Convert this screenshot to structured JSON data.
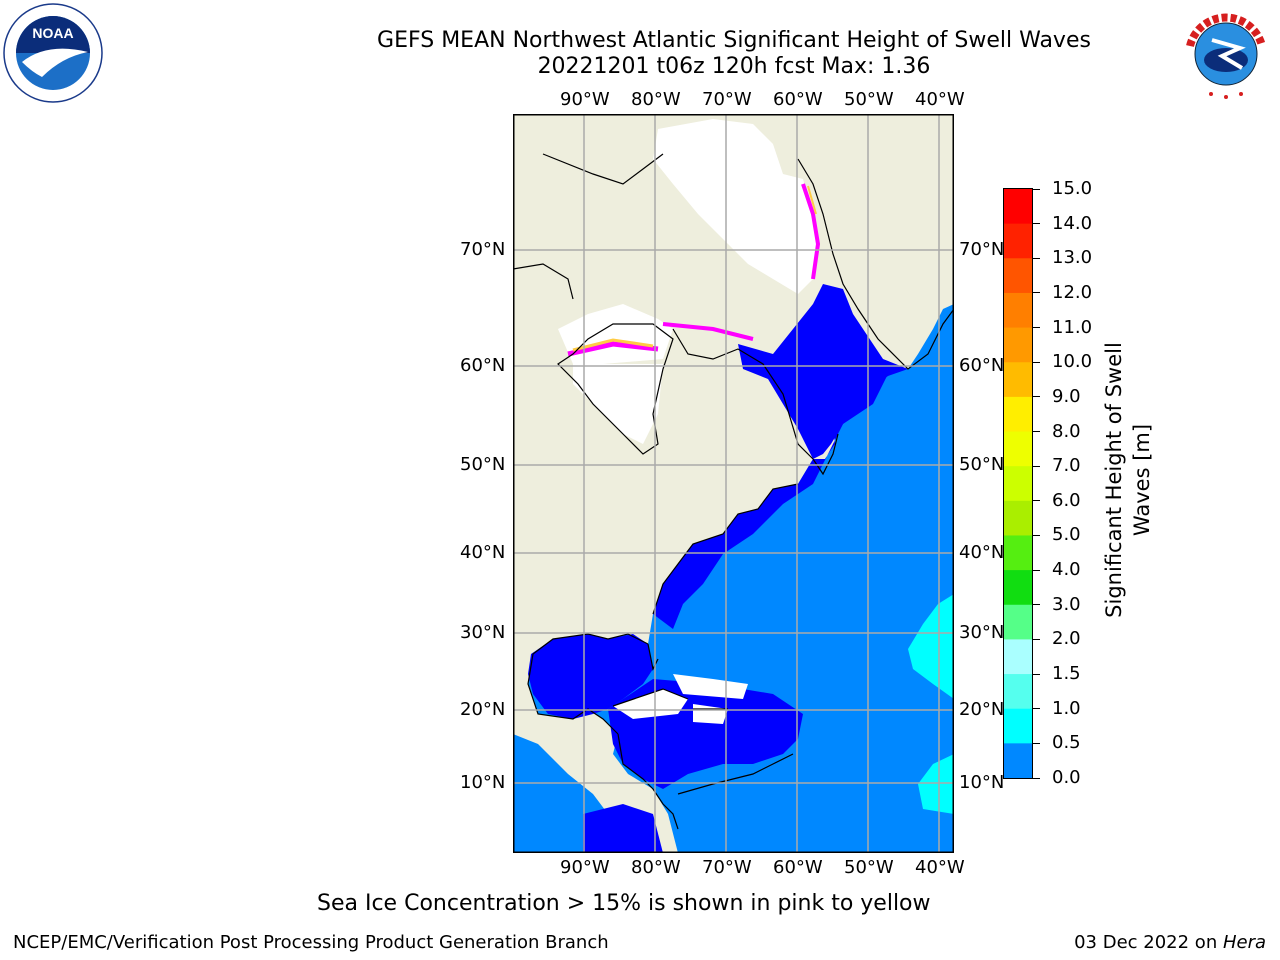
{
  "title": {
    "line1": "GEFS MEAN Northwest Atlantic Significant Height of Swell Waves",
    "line2": "20221201 t06z 120h fcst   Max: 1.36"
  },
  "map": {
    "lon_labels": [
      "90°W",
      "80°W",
      "70°W",
      "60°W",
      "50°W",
      "40°W"
    ],
    "lat_labels": [
      "70°N",
      "60°N",
      "50°N",
      "40°N",
      "30°N",
      "20°N",
      "10°N"
    ],
    "land_color": "#eeeedd",
    "ice_colors": [
      "#ff00ff",
      "#ff66cc",
      "#ffcc44",
      "#ffff00"
    ]
  },
  "colorbar": {
    "title": "Significant Height of Swell Waves [m]",
    "title_line1": "Significant Height of Swell",
    "title_line2": "Waves [m]",
    "tick_labels": [
      "15.0",
      "14.0",
      "13.0",
      "12.0",
      "11.0",
      "10.0",
      "9.0",
      "8.0",
      "7.0",
      "6.0",
      "5.0",
      "4.0",
      "3.0",
      "2.0",
      "1.5",
      "1.0",
      "0.5",
      "0.0"
    ],
    "colors_top_to_bottom": [
      "#ff0000",
      "#ff2200",
      "#ff5500",
      "#ff7f00",
      "#ff9900",
      "#ffbb00",
      "#ffee00",
      "#eeff00",
      "#ccff00",
      "#aaee00",
      "#55ee11",
      "#11dd11",
      "#55ff88",
      "#aaffff",
      "#55ffee",
      "#00ffff",
      "#0088ff",
      "#0000ff"
    ]
  },
  "note": "Sea Ice Concentration > 15% is shown in pink to yellow",
  "footer": {
    "left": "NCEP/EMC/Verification Post Processing Product Generation Branch",
    "right_date": "03 Dec 2022 on ",
    "right_host": "Hera"
  },
  "logos": {
    "noaa_text": "NOAA",
    "nws_text": "NATIONAL WEATHER SERVICE"
  }
}
